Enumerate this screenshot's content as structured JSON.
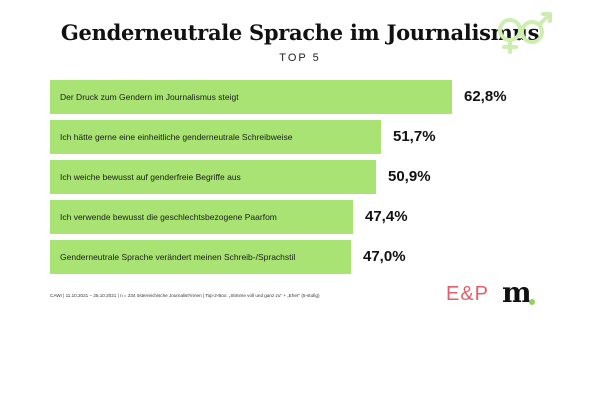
{
  "colors": {
    "bar": "#a9e374",
    "accent_logo": "#e2606d",
    "dot": "#8fd45a",
    "deco": "#cdeeb0"
  },
  "icons": {
    "header_decoration": "gender-symbols-icon"
  },
  "chart_data": {
    "type": "bar",
    "orientation": "horizontal",
    "title": "Genderneutrale Sprache im Journalismus",
    "subtitle": "TOP 5",
    "xlim": [
      0,
      100
    ],
    "categories": [
      "Der Druck zum Gendern im Journalismus steigt",
      "Ich hätte gerne eine einheitliche genderneutrale Schreibweise",
      "Ich weiche bewusst auf genderfreie Begriffe aus",
      "Ich verwende bewusst die geschlechtsbezogene Paarfom",
      "Genderneutrale Sprache verändert meinen Schreib-/Sprachstil"
    ],
    "values": [
      62.8,
      51.7,
      50.9,
      47.4,
      47.0
    ],
    "value_labels": [
      "62,8%",
      "51,7%",
      "50,9%",
      "47,4%",
      "47,0%"
    ]
  },
  "footnote": "CAWI | 11.10.2021 – 25.10.2021 | n = 234 österreichische Journalist*innen | Top-2-Box: „Stimme voll und ganz zu\" + „Eher\" (5-stufig)",
  "logos": {
    "ep": "E&P",
    "m": "m"
  }
}
